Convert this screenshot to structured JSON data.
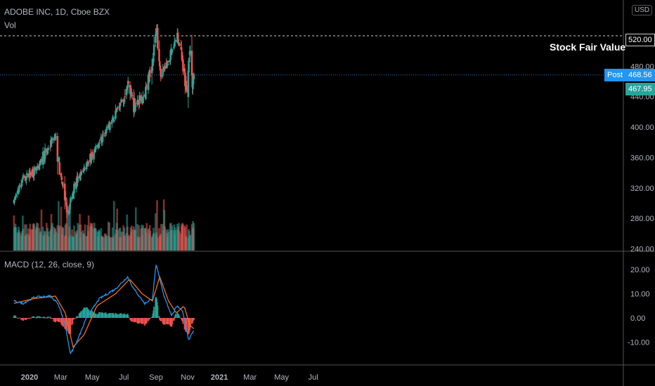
{
  "header": {
    "symbol": "ADOBE INC, 1D, Cboe BZX",
    "vol_label": "Vol",
    "macd_label": "MACD (12, 26, close, 9)",
    "currency": "USD"
  },
  "annotation": {
    "text": "Stock Fair Value"
  },
  "price_tags": {
    "fair_value": "520.00",
    "post_label": "Post",
    "post_price": "468.56",
    "last_price": "467.95"
  },
  "colors": {
    "up": "#26a69a",
    "down": "#ef5350",
    "macd": "#2196f3",
    "signal": "#ff6d00",
    "post": "#2196f3",
    "last": "#26a69a"
  },
  "chart_data": [
    {
      "type": "candlestick",
      "title": "ADOBE INC, 1D, Cboe BZX",
      "x_ticks": [
        "2020",
        "Mar",
        "May",
        "Jul",
        "Sep",
        "Nov",
        "2021",
        "Mar",
        "May",
        "Jul"
      ],
      "y_ticks": [
        240,
        280,
        320,
        360,
        400,
        440,
        480,
        520
      ],
      "ylim": [
        228,
        548
      ],
      "fair_value_line": 520,
      "post_price": 468.56,
      "last_price": 467.95,
      "price_waypoints": [
        {
          "date": "2019-12-02",
          "close": 303
        },
        {
          "date": "2019-12-20",
          "close": 333
        },
        {
          "date": "2020-01-15",
          "close": 346
        },
        {
          "date": "2020-02-14",
          "close": 382
        },
        {
          "date": "2020-02-20",
          "close": 386
        },
        {
          "date": "2020-02-28",
          "close": 345
        },
        {
          "date": "2020-03-12",
          "close": 295
        },
        {
          "date": "2020-03-16",
          "close": 290
        },
        {
          "date": "2020-03-26",
          "close": 320
        },
        {
          "date": "2020-04-15",
          "close": 345
        },
        {
          "date": "2020-05-15",
          "close": 380
        },
        {
          "date": "2020-06-10",
          "close": 410
        },
        {
          "date": "2020-06-30",
          "close": 440
        },
        {
          "date": "2020-07-10",
          "close": 460
        },
        {
          "date": "2020-07-20",
          "close": 430
        },
        {
          "date": "2020-08-10",
          "close": 440
        },
        {
          "date": "2020-08-26",
          "close": 490
        },
        {
          "date": "2020-09-02",
          "close": 530
        },
        {
          "date": "2020-09-10",
          "close": 470
        },
        {
          "date": "2020-09-25",
          "close": 485
        },
        {
          "date": "2020-10-12",
          "close": 520
        },
        {
          "date": "2020-10-20",
          "close": 495
        },
        {
          "date": "2020-10-30",
          "close": 445
        },
        {
          "date": "2020-11-05",
          "close": 500
        },
        {
          "date": "2020-11-10",
          "close": 455
        },
        {
          "date": "2020-11-13",
          "close": 468
        }
      ]
    },
    {
      "type": "bar",
      "title": "Vol",
      "note": "volume histogram overlaid on price pane; notable spikes near late Feb, mid Mar, early Sep, mid Sep"
    },
    {
      "type": "line",
      "title": "MACD (12, 26, close, 9)",
      "y_ticks": [
        -10,
        0,
        10,
        20
      ],
      "ylim": [
        -17,
        24
      ],
      "x_ticks": [
        "2020",
        "Mar",
        "May",
        "Jul",
        "Sep",
        "Nov",
        "2021",
        "Mar",
        "May",
        "Jul"
      ],
      "series": [
        {
          "name": "MACD",
          "points": [
            {
              "date": "2019-12-02",
              "y": 7
            },
            {
              "date": "2019-12-20",
              "y": 6
            },
            {
              "date": "2020-01-10",
              "y": 8.5
            },
            {
              "date": "2020-02-10",
              "y": 9
            },
            {
              "date": "2020-02-25",
              "y": 6
            },
            {
              "date": "2020-03-10",
              "y": -3
            },
            {
              "date": "2020-03-20",
              "y": -15
            },
            {
              "date": "2020-04-01",
              "y": -10
            },
            {
              "date": "2020-04-20",
              "y": 0
            },
            {
              "date": "2020-05-15",
              "y": 8
            },
            {
              "date": "2020-06-15",
              "y": 12
            },
            {
              "date": "2020-07-08",
              "y": 17
            },
            {
              "date": "2020-07-20",
              "y": 12
            },
            {
              "date": "2020-08-10",
              "y": 6
            },
            {
              "date": "2020-08-25",
              "y": 8
            },
            {
              "date": "2020-09-01",
              "y": 22
            },
            {
              "date": "2020-09-15",
              "y": 10
            },
            {
              "date": "2020-10-01",
              "y": 1
            },
            {
              "date": "2020-10-12",
              "y": 5
            },
            {
              "date": "2020-10-22",
              "y": 3
            },
            {
              "date": "2020-11-03",
              "y": -9
            },
            {
              "date": "2020-11-13",
              "y": -5
            }
          ]
        },
        {
          "name": "Signal",
          "points": [
            {
              "date": "2019-12-02",
              "y": 6
            },
            {
              "date": "2020-01-10",
              "y": 8
            },
            {
              "date": "2020-02-20",
              "y": 9
            },
            {
              "date": "2020-03-10",
              "y": 2
            },
            {
              "date": "2020-03-25",
              "y": -12
            },
            {
              "date": "2020-04-15",
              "y": -7
            },
            {
              "date": "2020-05-10",
              "y": 5
            },
            {
              "date": "2020-06-15",
              "y": 10
            },
            {
              "date": "2020-07-12",
              "y": 16
            },
            {
              "date": "2020-08-05",
              "y": 10
            },
            {
              "date": "2020-08-25",
              "y": 7
            },
            {
              "date": "2020-09-08",
              "y": 17
            },
            {
              "date": "2020-09-25",
              "y": 7
            },
            {
              "date": "2020-10-10",
              "y": 2
            },
            {
              "date": "2020-10-25",
              "y": 5
            },
            {
              "date": "2020-11-05",
              "y": -3
            },
            {
              "date": "2020-11-13",
              "y": -4.5
            }
          ]
        }
      ]
    }
  ]
}
